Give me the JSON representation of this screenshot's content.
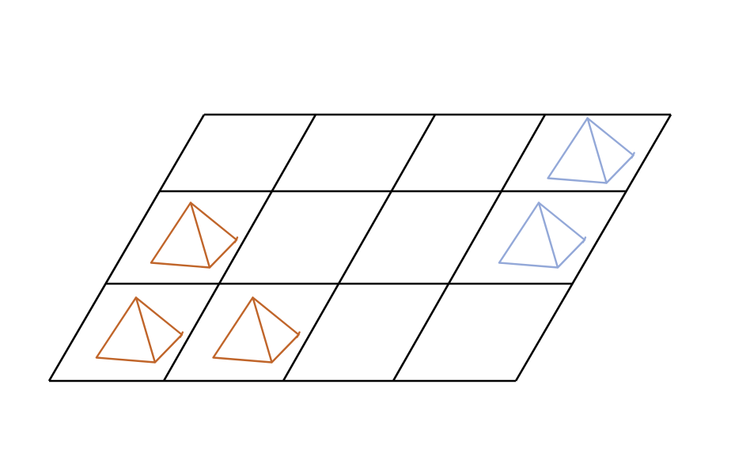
{
  "board": {
    "rows": 3,
    "cols": 4,
    "line_color": "#000000"
  },
  "colors": {
    "orange": "#C0652A",
    "blue": "#93A8D8"
  },
  "pieces": [
    {
      "row": 0,
      "col": 3,
      "color": "blue",
      "icon": "pyramid-icon"
    },
    {
      "row": 1,
      "col": 0,
      "color": "orange",
      "icon": "pyramid-icon"
    },
    {
      "row": 1,
      "col": 3,
      "color": "blue",
      "icon": "pyramid-icon"
    },
    {
      "row": 2,
      "col": 0,
      "color": "orange",
      "icon": "pyramid-icon"
    },
    {
      "row": 2,
      "col": 1,
      "color": "orange",
      "icon": "pyramid-icon"
    }
  ]
}
